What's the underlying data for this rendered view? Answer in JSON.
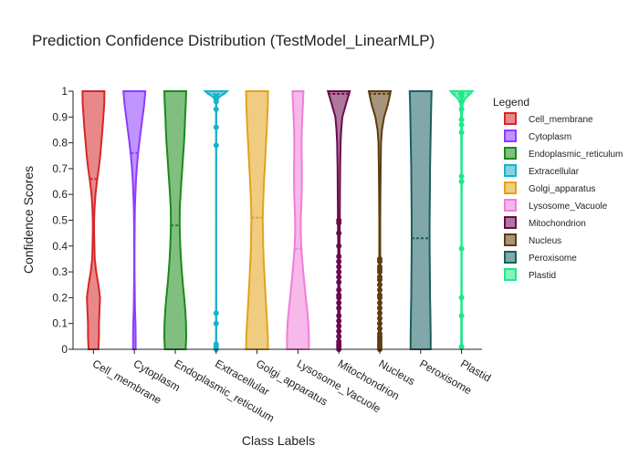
{
  "chart_data": {
    "type": "violin",
    "title": "Prediction Confidence Distribution (TestModel_LinearMLP)",
    "xlabel": "Class Labels",
    "ylabel": "Confidence Scores",
    "ylim": [
      0,
      1
    ],
    "yticks": [
      0,
      0.1,
      0.2,
      0.3,
      0.4,
      0.5,
      0.6,
      0.7,
      0.8,
      0.9,
      1
    ],
    "ytick_labels": [
      "0",
      "0.1",
      "0.2",
      "0.3",
      "0.4",
      "0.5",
      "0.6",
      "0.7",
      "0.8",
      "0.9",
      "1"
    ],
    "legend": {
      "title": "Legend",
      "position": "right"
    },
    "series": [
      {
        "name": "Cell_membrane",
        "color": "#d62728",
        "mean": 0.66,
        "profile": [
          [
            0,
            0.45
          ],
          [
            0.05,
            0.5
          ],
          [
            0.1,
            0.5
          ],
          [
            0.15,
            0.55
          ],
          [
            0.2,
            0.6
          ],
          [
            0.25,
            0.45
          ],
          [
            0.3,
            0.25
          ],
          [
            0.35,
            0.12
          ],
          [
            0.4,
            0.08
          ],
          [
            0.45,
            0.06
          ],
          [
            0.5,
            0.06
          ],
          [
            0.55,
            0.1
          ],
          [
            0.6,
            0.18
          ],
          [
            0.65,
            0.32
          ],
          [
            0.7,
            0.48
          ],
          [
            0.75,
            0.62
          ],
          [
            0.8,
            0.72
          ],
          [
            0.85,
            0.82
          ],
          [
            0.9,
            0.9
          ],
          [
            0.95,
            0.98
          ],
          [
            1,
            1
          ]
        ],
        "points": []
      },
      {
        "name": "Cytoplasm",
        "color": "#8c3cff",
        "mean": 0.76,
        "profile": [
          [
            0,
            0.12
          ],
          [
            0.05,
            0.12
          ],
          [
            0.1,
            0.1
          ],
          [
            0.15,
            0.06
          ],
          [
            0.2,
            0.04
          ],
          [
            0.3,
            0.02
          ],
          [
            0.4,
            0.02
          ],
          [
            0.5,
            0.03
          ],
          [
            0.55,
            0.05
          ],
          [
            0.6,
            0.09
          ],
          [
            0.65,
            0.14
          ],
          [
            0.7,
            0.22
          ],
          [
            0.75,
            0.32
          ],
          [
            0.8,
            0.45
          ],
          [
            0.85,
            0.6
          ],
          [
            0.9,
            0.75
          ],
          [
            0.95,
            0.9
          ],
          [
            1,
            1
          ]
        ],
        "points": []
      },
      {
        "name": "Endoplasmic_reticulum",
        "color": "#1a8a1a",
        "mean": 0.48,
        "profile": [
          [
            0,
            0.95
          ],
          [
            0.05,
            1
          ],
          [
            0.1,
            0.98
          ],
          [
            0.15,
            0.92
          ],
          [
            0.2,
            0.82
          ],
          [
            0.25,
            0.7
          ],
          [
            0.3,
            0.6
          ],
          [
            0.35,
            0.52
          ],
          [
            0.4,
            0.46
          ],
          [
            0.45,
            0.42
          ],
          [
            0.5,
            0.4
          ],
          [
            0.55,
            0.42
          ],
          [
            0.6,
            0.48
          ],
          [
            0.65,
            0.56
          ],
          [
            0.7,
            0.64
          ],
          [
            0.75,
            0.72
          ],
          [
            0.8,
            0.8
          ],
          [
            0.85,
            0.86
          ],
          [
            0.9,
            0.9
          ],
          [
            0.95,
            0.96
          ],
          [
            1,
            1
          ]
        ],
        "points": []
      },
      {
        "name": "Extracellular",
        "color": "#17b3c9",
        "mean": 0.99,
        "profile": [
          [
            0,
            0.02
          ],
          [
            0.5,
            0.01
          ],
          [
            0.95,
            0.02
          ],
          [
            0.97,
            0.15
          ],
          [
            0.98,
            0.35
          ],
          [
            0.99,
            0.75
          ],
          [
            1,
            1
          ]
        ],
        "points": [
          0,
          0.01,
          0.02,
          0.1,
          0.14,
          0.79,
          0.86,
          0.93,
          0.96,
          0.97,
          0.98
        ]
      },
      {
        "name": "Golgi_apparatus",
        "color": "#e3a21a",
        "mean": 0.51,
        "profile": [
          [
            0,
            1
          ],
          [
            0.05,
            0.98
          ],
          [
            0.1,
            0.92
          ],
          [
            0.15,
            0.85
          ],
          [
            0.2,
            0.78
          ],
          [
            0.25,
            0.72
          ],
          [
            0.3,
            0.66
          ],
          [
            0.35,
            0.6
          ],
          [
            0.4,
            0.56
          ],
          [
            0.45,
            0.54
          ],
          [
            0.5,
            0.52
          ],
          [
            0.55,
            0.54
          ],
          [
            0.6,
            0.58
          ],
          [
            0.65,
            0.63
          ],
          [
            0.7,
            0.7
          ],
          [
            0.75,
            0.76
          ],
          [
            0.8,
            0.82
          ],
          [
            0.85,
            0.88
          ],
          [
            0.9,
            0.93
          ],
          [
            0.95,
            0.98
          ],
          [
            1,
            1
          ]
        ],
        "points": []
      },
      {
        "name": "Lysosome_Vacuole",
        "color": "#f07ed8",
        "mean": 0.39,
        "profile": [
          [
            0,
            1
          ],
          [
            0.05,
            1
          ],
          [
            0.1,
            0.95
          ],
          [
            0.15,
            0.85
          ],
          [
            0.2,
            0.72
          ],
          [
            0.25,
            0.6
          ],
          [
            0.3,
            0.48
          ],
          [
            0.35,
            0.38
          ],
          [
            0.4,
            0.3
          ],
          [
            0.45,
            0.26
          ],
          [
            0.5,
            0.26
          ],
          [
            0.55,
            0.3
          ],
          [
            0.6,
            0.34
          ],
          [
            0.65,
            0.36
          ],
          [
            0.7,
            0.36
          ],
          [
            0.75,
            0.34
          ],
          [
            0.8,
            0.33
          ],
          [
            0.85,
            0.35
          ],
          [
            0.9,
            0.4
          ],
          [
            0.95,
            0.45
          ],
          [
            1,
            0.5
          ]
        ],
        "points": []
      },
      {
        "name": "Mitochondrion",
        "color": "#6b0a4f",
        "mean": 0.99,
        "profile": [
          [
            0,
            0.08
          ],
          [
            0.2,
            0.06
          ],
          [
            0.4,
            0.06
          ],
          [
            0.5,
            0.08
          ],
          [
            0.6,
            0.1
          ],
          [
            0.7,
            0.12
          ],
          [
            0.8,
            0.16
          ],
          [
            0.85,
            0.22
          ],
          [
            0.9,
            0.32
          ],
          [
            0.95,
            0.65
          ],
          [
            1,
            1
          ]
        ],
        "points": [
          0,
          0.01,
          0.02,
          0.03,
          0.05,
          0.07,
          0.09,
          0.11,
          0.13,
          0.16,
          0.18,
          0.2,
          0.21,
          0.23,
          0.26,
          0.28,
          0.3,
          0.32,
          0.34,
          0.36,
          0.4,
          0.45,
          0.49,
          0.5
        ]
      },
      {
        "name": "Nucleus",
        "color": "#5c3d10",
        "mean": 0.99,
        "profile": [
          [
            0,
            0.08
          ],
          [
            0.2,
            0.06
          ],
          [
            0.4,
            0.04
          ],
          [
            0.5,
            0.04
          ],
          [
            0.6,
            0.06
          ],
          [
            0.7,
            0.08
          ],
          [
            0.8,
            0.12
          ],
          [
            0.85,
            0.2
          ],
          [
            0.9,
            0.4
          ],
          [
            0.95,
            0.75
          ],
          [
            1,
            1
          ]
        ],
        "points": [
          0,
          0.01,
          0.02,
          0.03,
          0.04,
          0.05,
          0.06,
          0.08,
          0.1,
          0.12,
          0.14,
          0.16,
          0.18,
          0.2,
          0.21,
          0.23,
          0.25,
          0.27,
          0.28,
          0.3,
          0.31,
          0.32,
          0.34,
          0.35
        ]
      },
      {
        "name": "Peroxisome",
        "color": "#1a5f60",
        "mean": 0.43,
        "profile": [
          [
            0,
            0.92
          ],
          [
            0.05,
            0.92
          ],
          [
            0.1,
            0.9
          ],
          [
            0.15,
            0.88
          ],
          [
            0.2,
            0.86
          ],
          [
            0.3,
            0.84
          ],
          [
            0.4,
            0.82
          ],
          [
            0.5,
            0.82
          ],
          [
            0.6,
            0.84
          ],
          [
            0.7,
            0.86
          ],
          [
            0.8,
            0.9
          ],
          [
            0.9,
            0.94
          ],
          [
            0.95,
            0.97
          ],
          [
            1,
            1
          ]
        ],
        "points": []
      },
      {
        "name": "Plastid",
        "color": "#1de98b",
        "mean": 0.99,
        "profile": [
          [
            0,
            0.03
          ],
          [
            0.3,
            0.02
          ],
          [
            0.6,
            0.02
          ],
          [
            0.9,
            0.03
          ],
          [
            0.95,
            0.1
          ],
          [
            0.97,
            0.3
          ],
          [
            0.98,
            0.55
          ],
          [
            0.99,
            0.8
          ],
          [
            1,
            1
          ]
        ],
        "points": [
          0.01,
          0.13,
          0.2,
          0.39,
          0.65,
          0.67,
          0.84,
          0.87,
          0.89,
          0.93,
          0.96,
          0.98,
          0.99
        ]
      }
    ]
  }
}
